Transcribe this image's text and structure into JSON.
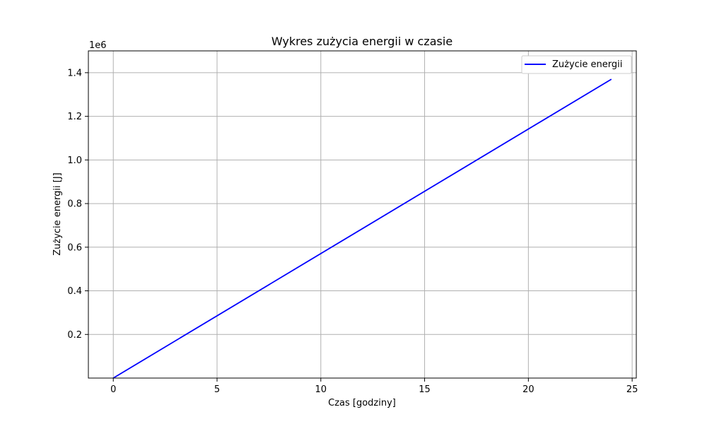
{
  "chart_data": {
    "type": "line",
    "title": "Wykres zużycia energii w czasie",
    "xlabel": "Czas [godziny]",
    "ylabel": "Zużycie energii [J]",
    "y_offset_label": "1e6",
    "x": [
      0,
      24
    ],
    "series": [
      {
        "name": "Zużycie energii",
        "color": "#0000ff",
        "values": [
          0.0,
          1.37
        ]
      }
    ],
    "xlim": [
      -1.2,
      25.2
    ],
    "ylim": [
      0.0,
      1.5
    ],
    "x_ticks": [
      0,
      5,
      10,
      15,
      20,
      25
    ],
    "y_ticks": [
      0.2,
      0.4,
      0.6,
      0.8,
      1.0,
      1.2,
      1.4
    ],
    "x_tick_labels": [
      "0",
      "5",
      "10",
      "15",
      "20",
      "25"
    ],
    "y_tick_labels": [
      "0.2",
      "0.4",
      "0.6",
      "0.8",
      "1.0",
      "1.2",
      "1.4"
    ],
    "grid": true,
    "legend_position": "top-right"
  }
}
